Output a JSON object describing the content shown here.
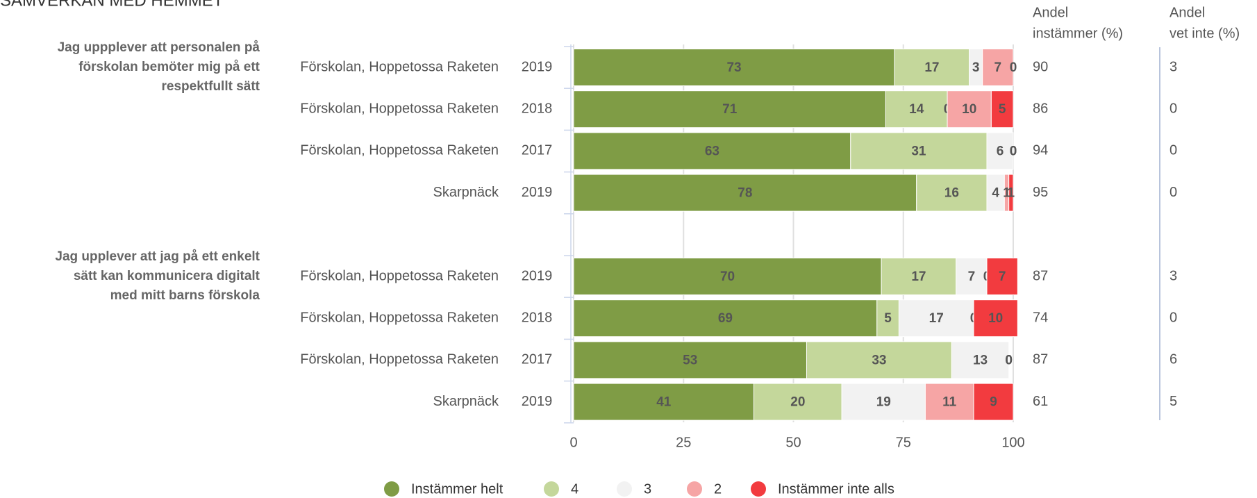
{
  "chart_data": {
    "type": "bar",
    "orientation": "horizontal",
    "stacked": true,
    "title": "SAMVERKAN MED HEMMET",
    "groups": [
      {
        "label": [
          "Jag uppplever att personalen på",
          "förskolan bemöter mig på ett",
          "respektfullt sätt"
        ]
      },
      {
        "label": [
          "Jag upplever att jag på ett enkelt",
          "sätt kan kommunicera digitalt",
          "med mitt barns förskola"
        ]
      }
    ],
    "categories": [
      "Förskolan, Hoppetossa Raketen",
      "Förskolan, Hoppetossa Raketen",
      "Förskolan, Hoppetossa Raketen",
      "Skarpnäck",
      "Förskolan, Hoppetossa Raketen",
      "Förskolan, Hoppetossa Raketen",
      "Förskolan, Hoppetossa Raketen",
      "Skarpnäck"
    ],
    "years": [
      "2019",
      "2018",
      "2017",
      "2019",
      "2019",
      "2018",
      "2017",
      "2019"
    ],
    "series": [
      {
        "name": "Instämmer helt",
        "color": "#7f9c45",
        "label_color": "#ffffff",
        "values": [
          73,
          71,
          63,
          78,
          70,
          69,
          53,
          41
        ]
      },
      {
        "name": "4",
        "color": "#c4d79b",
        "label_color": "#ffffff",
        "values": [
          17,
          14,
          31,
          16,
          17,
          5,
          33,
          20
        ]
      },
      {
        "name": "3",
        "color": "#f2f2f2",
        "label_color": "#000000",
        "values": [
          3,
          0,
          6,
          4,
          7,
          17,
          13,
          19
        ]
      },
      {
        "name": "2",
        "color": "#f6a5a5",
        "label_color": "#000000",
        "values": [
          7,
          10,
          0,
          1,
          0,
          0,
          0,
          11
        ]
      },
      {
        "name": "Instämmer inte alls",
        "color": "#f23b3f",
        "label_color": "#ffffff",
        "values": [
          0,
          5,
          0,
          1,
          7,
          10,
          0,
          9
        ]
      }
    ],
    "columns": [
      {
        "header": [
          "Andel",
          "instämmer (%)"
        ],
        "values": [
          90,
          86,
          94,
          95,
          87,
          74,
          87,
          61
        ]
      },
      {
        "header": [
          "Andel",
          "vet inte (%)"
        ],
        "values": [
          3,
          0,
          0,
          0,
          3,
          0,
          6,
          5
        ]
      }
    ],
    "xlim": [
      0,
      100
    ],
    "xticks": [
      0,
      25,
      50,
      75,
      100
    ],
    "grid": true
  }
}
